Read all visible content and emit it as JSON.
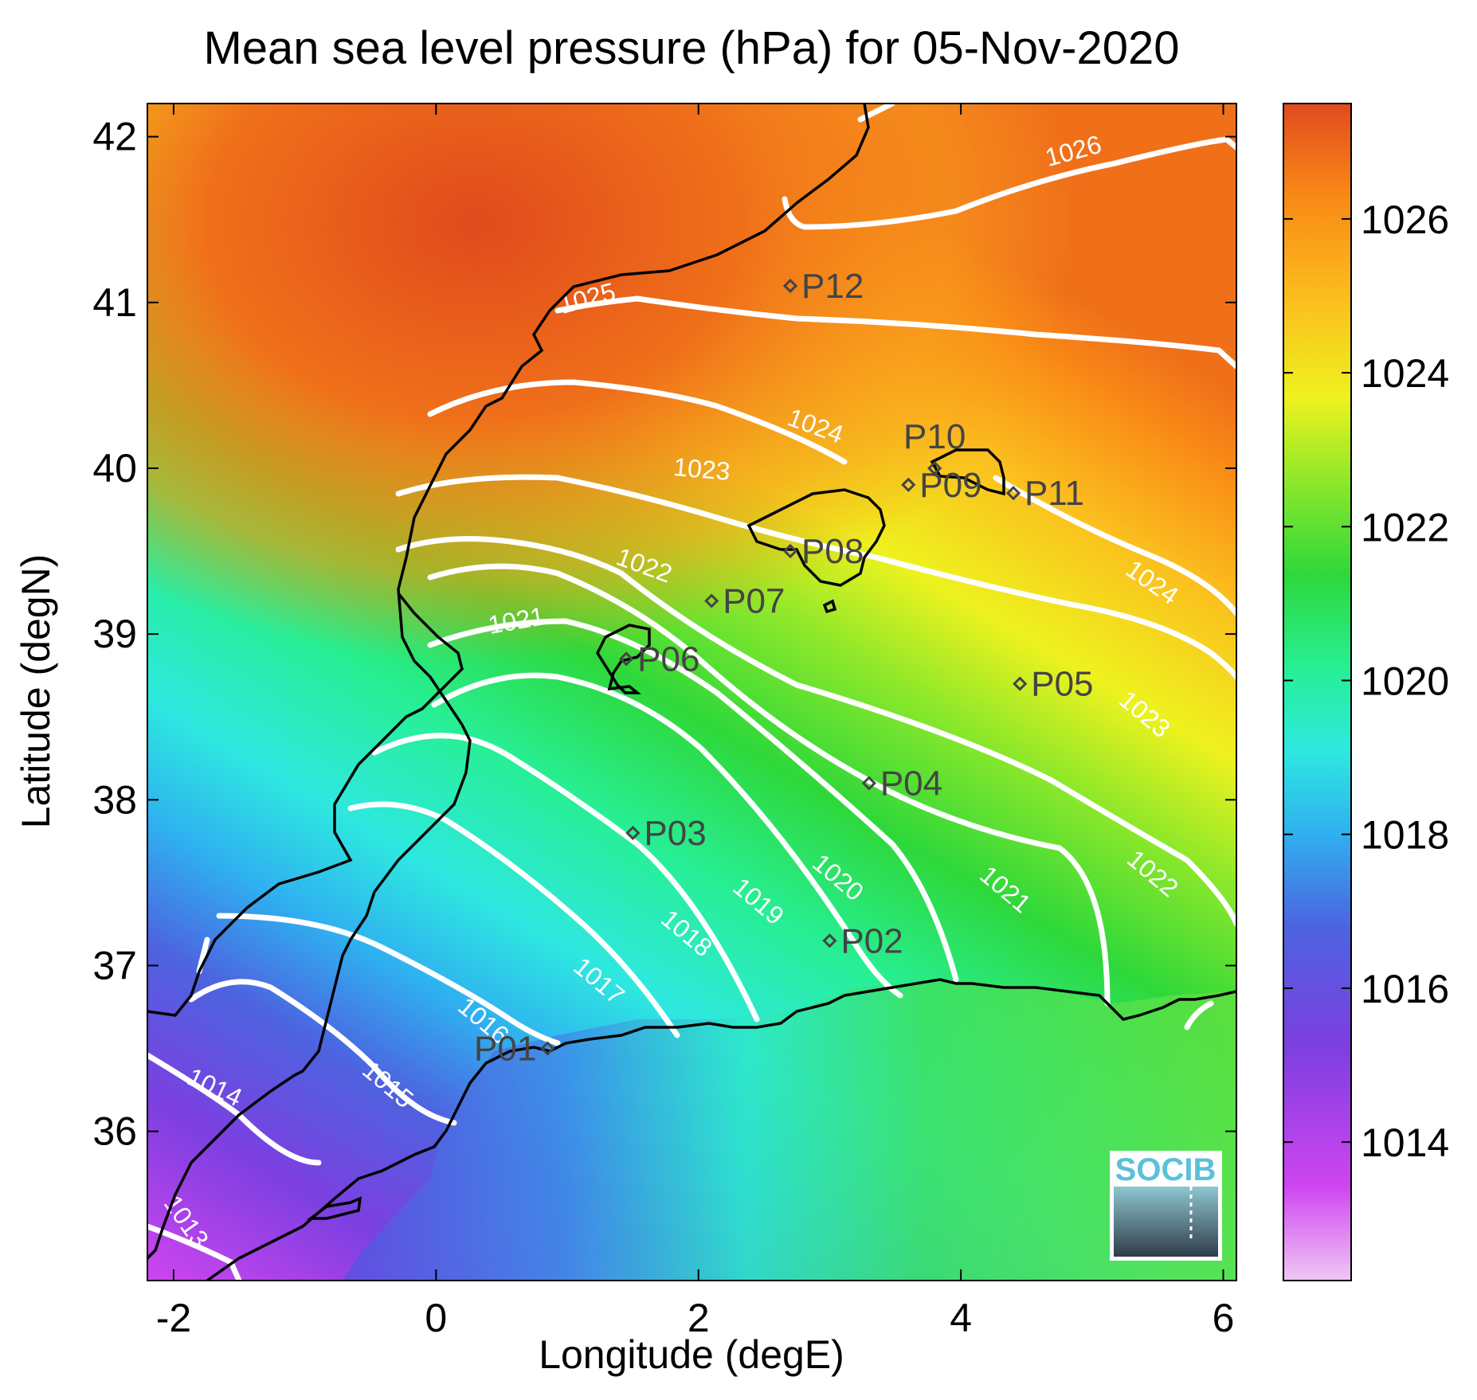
{
  "title": "Mean sea level pressure (hPa) for 05-Nov-2020",
  "xlabel": "Longitude (degE)",
  "ylabel": "Latitude (degN)",
  "xlim": [
    -2.2,
    6.1
  ],
  "ylim": [
    35.1,
    42.2
  ],
  "xticks": [
    "-2",
    "0",
    "2",
    "4",
    "6"
  ],
  "yticks": [
    "36",
    "37",
    "38",
    "39",
    "40",
    "41",
    "42"
  ],
  "colorbar": {
    "range": [
      1012.2,
      1027.5
    ],
    "ticks": [
      "1014",
      "1016",
      "1018",
      "1020",
      "1022",
      "1024",
      "1026"
    ],
    "colormap": [
      "#f0c8f4",
      "#cf45f0",
      "#7c3fe0",
      "#4d63e0",
      "#2fb0f0",
      "#2ee8e0",
      "#27ef95",
      "#2ed83a",
      "#8ee82a",
      "#eef21e",
      "#fbc01e",
      "#f98a16",
      "#e24a1e"
    ]
  },
  "logo": "SOCIB",
  "contour_labels": [
    "1013",
    "1014",
    "1015",
    "1016",
    "1017",
    "1018",
    "1019",
    "1020",
    "1021",
    "1021",
    "1022",
    "1022",
    "1023",
    "1023",
    "1024",
    "1024",
    "1025",
    "1026"
  ],
  "stations": [
    {
      "name": "P01",
      "lon": 0.85,
      "lat": 36.5
    },
    {
      "name": "P02",
      "lon": 3.0,
      "lat": 37.15
    },
    {
      "name": "P03",
      "lon": 1.5,
      "lat": 37.8
    },
    {
      "name": "P04",
      "lon": 3.3,
      "lat": 38.1
    },
    {
      "name": "P05",
      "lon": 4.45,
      "lat": 38.7
    },
    {
      "name": "P06",
      "lon": 1.45,
      "lat": 38.85
    },
    {
      "name": "P07",
      "lon": 2.1,
      "lat": 39.2
    },
    {
      "name": "P08",
      "lon": 2.7,
      "lat": 39.5
    },
    {
      "name": "P09",
      "lon": 3.6,
      "lat": 39.9
    },
    {
      "name": "P10",
      "lon": 3.8,
      "lat": 40.0
    },
    {
      "name": "P11",
      "lon": 4.4,
      "lat": 39.85
    },
    {
      "name": "P12",
      "lon": 2.7,
      "lat": 41.1
    }
  ]
}
